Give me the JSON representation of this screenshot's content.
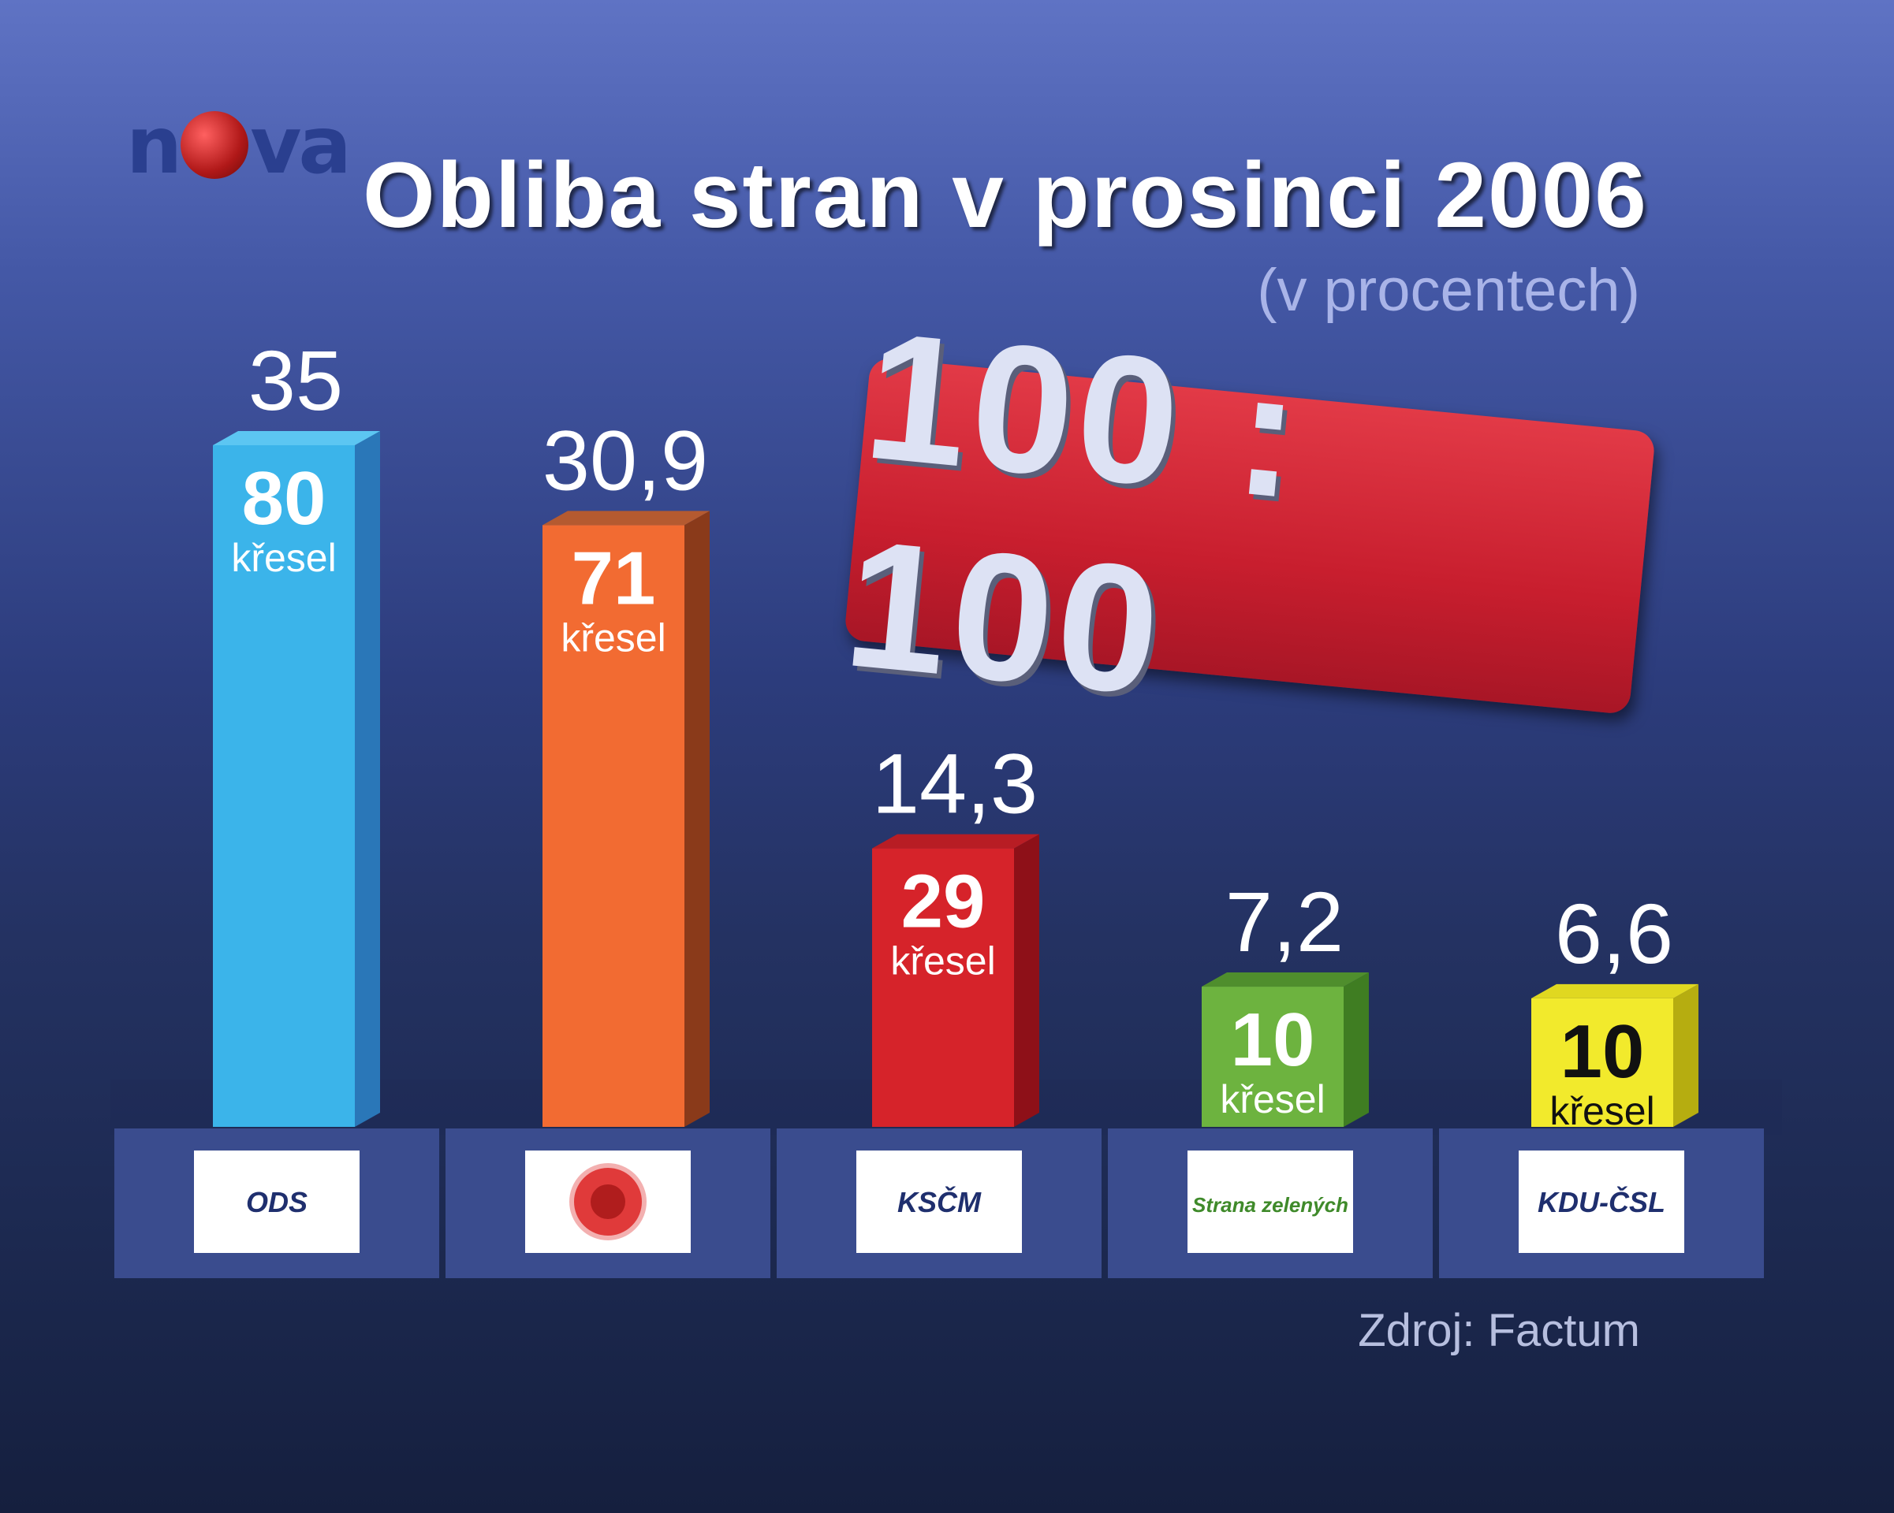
{
  "header": {
    "logo_text": "nova",
    "title": "Obliba stran v prosinci 2006",
    "subtitle": "(v procentech)"
  },
  "badge": {
    "text": "100 : 100"
  },
  "source": "Zdroj: Factum",
  "chart_data": {
    "type": "bar",
    "title": "Obliba stran v prosinci 2006",
    "subtitle": "(v procentech)",
    "ylim": [
      0,
      35
    ],
    "seat_unit": "křesel",
    "bars": [
      {
        "party": "ODS",
        "value": 35,
        "value_label": "35",
        "seats": 80,
        "color": "#3bb4ea",
        "side": "#2a77b8",
        "top": "#5cc6f2",
        "logo": "ODS"
      },
      {
        "party": "ČSSD",
        "value": 30.9,
        "value_label": "30,9",
        "seats": 71,
        "color": "#f26b32",
        "side": "#8a3a1a",
        "top": "#b55a30",
        "logo": ""
      },
      {
        "party": "KSČM",
        "value": 14.3,
        "value_label": "14,3",
        "seats": 29,
        "color": "#d6232a",
        "side": "#8e1018",
        "top": "#b81d24",
        "logo": "KSČM"
      },
      {
        "party": "Strana zelených",
        "value": 7.2,
        "value_label": "7,2",
        "seats": 10,
        "color": "#6db33f",
        "side": "#3f7d22",
        "top": "#4f8e2d",
        "logo": "Strana zelených"
      },
      {
        "party": "KDU-ČSL",
        "value": 6.6,
        "value_label": "6,6",
        "seats": 10,
        "color": "#f2ea2c",
        "side": "#b6ad10",
        "top": "#e0d820",
        "logo": "KDU-ČSL"
      }
    ]
  }
}
